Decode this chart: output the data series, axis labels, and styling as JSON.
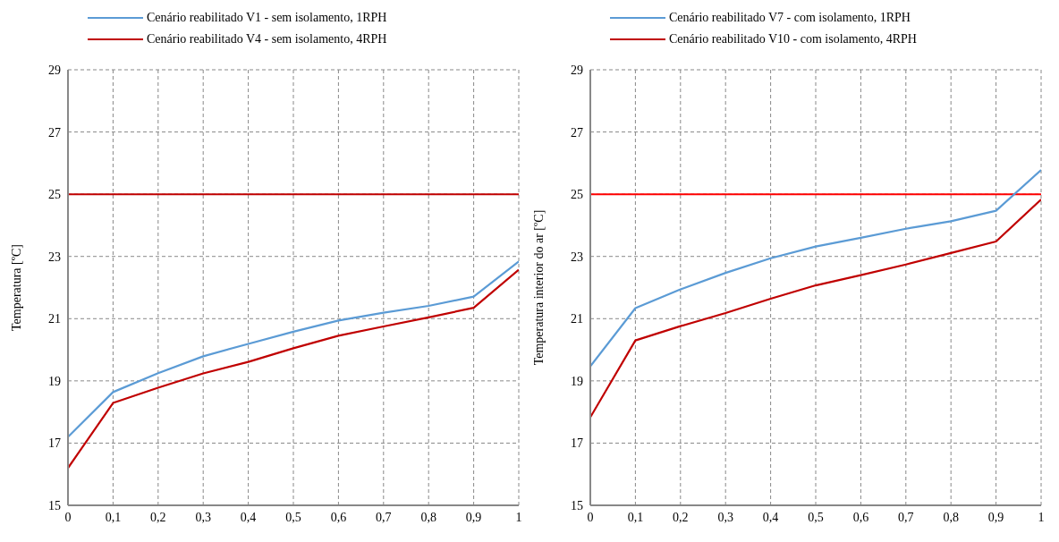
{
  "chart_data": [
    {
      "type": "line",
      "ylabel": "Temperatura [ºC]",
      "x": [
        0,
        0.1,
        0.2,
        0.3,
        0.4,
        0.5,
        0.6,
        0.7,
        0.8,
        0.9,
        1
      ],
      "series": [
        {
          "name": "Cenário reabilitado V1 - sem isolamento, 1RPH",
          "color": "#5b9bd5",
          "values": [
            17.2,
            18.64,
            19.25,
            19.79,
            20.19,
            20.58,
            20.94,
            21.19,
            21.41,
            21.71,
            22.84
          ]
        },
        {
          "name": "Cenário reabilitado V4 - sem isolamento, 4RPH",
          "color": "#c00000",
          "values": [
            16.2,
            18.29,
            18.78,
            19.24,
            19.61,
            20.05,
            20.45,
            20.75,
            21.04,
            21.35,
            22.57
          ]
        }
      ],
      "xlim": [
        0,
        1
      ],
      "xticks": [
        {
          "value": 0,
          "label": "0"
        },
        {
          "value": 0.1,
          "label": "0,1"
        },
        {
          "value": 0.2,
          "label": "0,2"
        },
        {
          "value": 0.3,
          "label": "0,3"
        },
        {
          "value": 0.4,
          "label": "0,4"
        },
        {
          "value": 0.5,
          "label": "0,5"
        },
        {
          "value": 0.6,
          "label": "0,6"
        },
        {
          "value": 0.7,
          "label": "0,7"
        },
        {
          "value": 0.8,
          "label": "0,8"
        },
        {
          "value": 0.9,
          "label": "0,9"
        },
        {
          "value": 1,
          "label": "1"
        }
      ],
      "ylim": [
        15,
        29
      ],
      "yticks": [
        15,
        17,
        19,
        21,
        23,
        25,
        27,
        29
      ],
      "ref_lines": [
        {
          "axis": "y",
          "value": 25,
          "color": "#c00000"
        }
      ],
      "grid": true,
      "legend": "top",
      "marker": "none",
      "line_style": "solid"
    },
    {
      "type": "line",
      "ylabel": "Temperatura interior do ar [ºC]",
      "x": [
        0,
        0.1,
        0.2,
        0.3,
        0.4,
        0.5,
        0.6,
        0.7,
        0.8,
        0.9,
        1
      ],
      "series": [
        {
          "name": "Cenário reabilitado V7 - com isolamento, 1RPH",
          "color": "#5b9bd5",
          "values": [
            19.47,
            21.34,
            21.94,
            22.47,
            22.94,
            23.32,
            23.6,
            23.89,
            24.13,
            24.47,
            25.78
          ]
        },
        {
          "name": "Cenário reabilitado V10 - com isolamento, 4RPH",
          "color": "#c00000",
          "values": [
            17.83,
            20.3,
            20.76,
            21.18,
            21.64,
            22.07,
            22.4,
            22.74,
            23.11,
            23.48,
            24.83
          ]
        }
      ],
      "xlim": [
        0,
        1
      ],
      "xticks": [
        {
          "value": 0,
          "label": "0"
        },
        {
          "value": 0.1,
          "label": "0,1"
        },
        {
          "value": 0.2,
          "label": "0,2"
        },
        {
          "value": 0.3,
          "label": "0,3"
        },
        {
          "value": 0.4,
          "label": "0,4"
        },
        {
          "value": 0.5,
          "label": "0,5"
        },
        {
          "value": 0.6,
          "label": "0,6"
        },
        {
          "value": 0.7,
          "label": "0,7"
        },
        {
          "value": 0.8,
          "label": "0,8"
        },
        {
          "value": 0.9,
          "label": "0,9"
        },
        {
          "value": 1,
          "label": "1"
        }
      ],
      "ylim": [
        15,
        29
      ],
      "yticks": [
        15,
        17,
        19,
        21,
        23,
        25,
        27,
        29
      ],
      "ref_lines": [
        {
          "axis": "y",
          "value": 25,
          "color": "#ff0000"
        }
      ],
      "grid": true,
      "legend": "top",
      "marker": "none",
      "line_style": "solid"
    }
  ]
}
